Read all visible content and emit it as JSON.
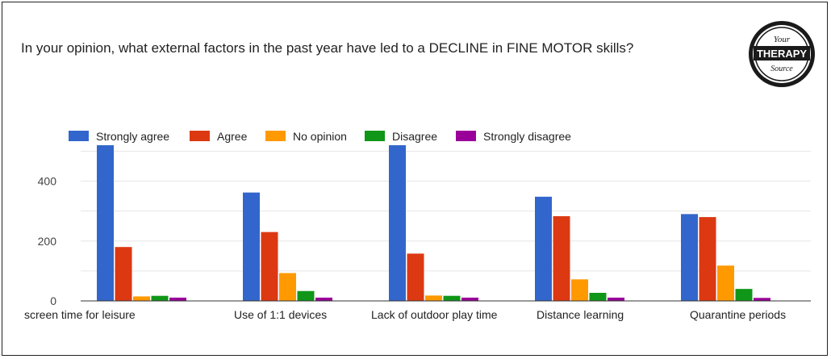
{
  "logo": {
    "line1": "Your",
    "line2": "THERAPY",
    "line3": "Source"
  },
  "chart_data": {
    "type": "bar",
    "title": "In your opinion, what external factors in the past year have led to a DECLINE in FINE MOTOR skills?",
    "categories": [
      "screen time for leisure",
      "Use of 1:1 devices",
      "Lack of outdoor play time",
      "Distance learning",
      "Quarantine periods"
    ],
    "series": [
      {
        "name": "Strongly agree",
        "color": "#3366cc",
        "values": [
          520,
          362,
          528,
          348,
          290
        ]
      },
      {
        "name": "Agree",
        "color": "#dc3912",
        "values": [
          180,
          230,
          158,
          283,
          280
        ]
      },
      {
        "name": "No opinion",
        "color": "#ff9900",
        "values": [
          15,
          93,
          18,
          72,
          118
        ]
      },
      {
        "name": "Disagree",
        "color": "#109618",
        "values": [
          17,
          33,
          17,
          27,
          40
        ]
      },
      {
        "name": "Strongly disagree",
        "color": "#990099",
        "values": [
          11,
          11,
          11,
          11,
          10
        ]
      }
    ],
    "yticks": [
      0,
      200,
      400
    ],
    "ylim": [
      0,
      520
    ],
    "grid": true,
    "legend": "top-left"
  }
}
